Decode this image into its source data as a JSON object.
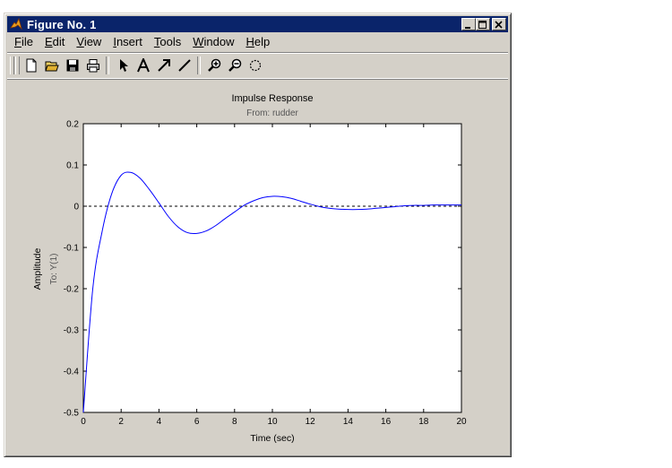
{
  "window": {
    "title": "Figure No. 1"
  },
  "menu": [
    {
      "label": "File",
      "mnemonic": "F",
      "rest": "ile"
    },
    {
      "label": "Edit",
      "mnemonic": "E",
      "rest": "dit"
    },
    {
      "label": "View",
      "mnemonic": "V",
      "rest": "iew"
    },
    {
      "label": "Insert",
      "mnemonic": "I",
      "rest": "nsert"
    },
    {
      "label": "Tools",
      "mnemonic": "T",
      "rest": "ools"
    },
    {
      "label": "Window",
      "mnemonic": "W",
      "rest": "indow"
    },
    {
      "label": "Help",
      "mnemonic": "H",
      "rest": "elp"
    }
  ],
  "toolbar": [
    "new-file-icon",
    "open-folder-icon",
    "save-icon",
    "print-icon",
    "select-arrow-icon",
    "text-icon",
    "arrow-icon",
    "line-icon",
    "zoom-in-icon",
    "zoom-out-icon",
    "rotate-icon"
  ],
  "colors": {
    "title_bg": "#0a246a",
    "plot_line": "#0000ff",
    "panel": "#d4d0c8"
  },
  "chart_data": {
    "type": "line",
    "title": "Impulse Response",
    "subtitle": "From: rudder",
    "xlabel": "Time (sec)",
    "ylabel": "Amplitude",
    "ylabel2": "To: Y(1)",
    "xlim": [
      0,
      20
    ],
    "ylim": [
      -0.5,
      0.2
    ],
    "xticks": [
      "0",
      "2",
      "4",
      "6",
      "8",
      "10",
      "12",
      "14",
      "16",
      "18",
      "20"
    ],
    "yticks": [
      "0.2",
      "0.1",
      "0",
      "-0.1",
      "-0.2",
      "-0.3",
      "-0.4",
      "-0.5"
    ],
    "zero_line": "dashed",
    "series": [
      {
        "x": [
          0,
          0.5,
          1.0,
          1.5,
          2.0,
          2.5,
          3.0,
          3.5,
          4.0,
          4.5,
          5.0,
          5.5,
          6.0,
          6.5,
          7.0,
          7.5,
          8.0,
          8.5,
          9.0,
          9.5,
          10.0,
          10.5,
          11.0,
          11.5,
          12.0,
          12.5,
          13.0,
          13.5,
          14.0,
          14.5,
          15.0,
          15.5,
          16.0,
          16.5,
          17.0,
          17.5,
          18.0,
          18.5,
          19.0,
          19.5,
          20.0
        ],
        "y": [
          -0.5,
          -0.2,
          -0.06,
          0.03,
          0.075,
          0.082,
          0.068,
          0.04,
          0.008,
          -0.025,
          -0.05,
          -0.064,
          -0.066,
          -0.06,
          -0.047,
          -0.03,
          -0.014,
          0.002,
          0.013,
          0.021,
          0.024,
          0.023,
          0.019,
          0.012,
          0.005,
          -0.001,
          -0.005,
          -0.007,
          -0.008,
          -0.008,
          -0.007,
          -0.005,
          -0.003,
          -0.001,
          0.001,
          0.002,
          0.002,
          0.003,
          0.003,
          0.003,
          0.003
        ]
      }
    ]
  }
}
